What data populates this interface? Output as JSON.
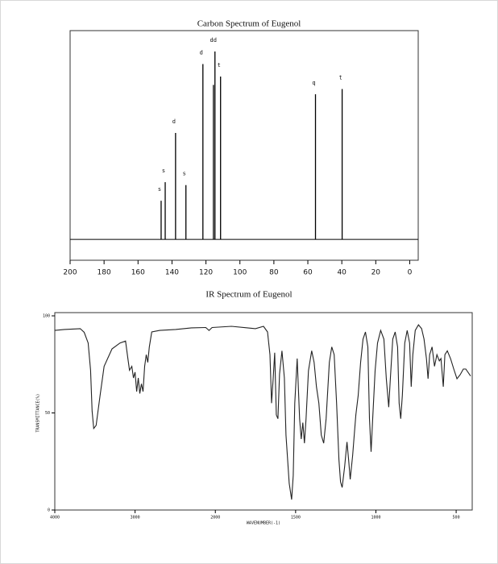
{
  "chart_data": [
    {
      "type": "stem",
      "title": "Carbon Spectrum of Eugenol",
      "x": [
        146.4,
        144.0,
        137.9,
        131.8,
        121.8,
        115.6,
        114.7,
        111.4,
        55.5,
        39.8
      ],
      "values": [
        18.5,
        27.4,
        51,
        26,
        84,
        74,
        90,
        78,
        69.5,
        72
      ],
      "peak_labels": [
        "s",
        "s",
        "d",
        "s",
        "d",
        null,
        "dd",
        "t",
        "q",
        "t"
      ],
      "xlim": [
        200,
        -5
      ],
      "ylim": [
        -10,
        100
      ],
      "xticks": [
        200,
        180,
        160,
        140,
        120,
        100,
        80,
        60,
        40,
        20,
        0
      ],
      "color": "#000000"
    },
    {
      "type": "line",
      "title": "IR Spectrum of Eugenol",
      "x_label": "WAVENUMBER(-1)",
      "y_label": "TRANSMITTANCE(%)",
      "x_break": 2000,
      "x_break_ratio": 2,
      "xlim": [
        4000,
        400
      ],
      "ylim": [
        0,
        100
      ],
      "xticks": [
        4000,
        3000,
        2000,
        1500,
        1000,
        500
      ],
      "yticks": [
        0,
        50,
        100
      ],
      "color": "#222222",
      "x": [
        4000,
        3881,
        3683,
        3634,
        3584,
        3554,
        3535,
        3515,
        3485,
        3436,
        3386,
        3287,
        3188,
        3119,
        3089,
        3069,
        3040,
        3020,
        3000,
        2980,
        2960,
        2941,
        2921,
        2901,
        2881,
        2861,
        2842,
        2822,
        2792,
        2693,
        2495,
        2297,
        2119,
        2079,
        2040,
        1900,
        1800,
        1750,
        1700,
        1675,
        1660,
        1650,
        1640,
        1630,
        1620,
        1610,
        1600,
        1585,
        1570,
        1560,
        1540,
        1525,
        1515,
        1505,
        1490,
        1475,
        1465,
        1455,
        1445,
        1435,
        1420,
        1400,
        1385,
        1370,
        1355,
        1340,
        1325,
        1310,
        1290,
        1275,
        1260,
        1245,
        1230,
        1220,
        1210,
        1195,
        1180,
        1170,
        1160,
        1145,
        1135,
        1125,
        1110,
        1095,
        1080,
        1065,
        1050,
        1040,
        1030,
        1020,
        1005,
        990,
        970,
        950,
        935,
        920,
        910,
        895,
        880,
        865,
        855,
        845,
        835,
        820,
        805,
        790,
        780,
        770,
        755,
        735,
        715,
        700,
        685,
        675,
        665,
        650,
        635,
        620,
        605,
        595,
        580,
        570,
        555,
        535,
        515,
        495,
        475,
        455,
        440,
        410
      ],
      "values": [
        92.5,
        93,
        93.4,
        91.5,
        86,
        72,
        51,
        42,
        43.6,
        59,
        74,
        83,
        86,
        87,
        78,
        72,
        74,
        68,
        71,
        61,
        68,
        60,
        65,
        61,
        74,
        80,
        76,
        84,
        91.7,
        92.5,
        93,
        93.8,
        94,
        92.5,
        94,
        94.6,
        93.8,
        93.4,
        94.6,
        91.7,
        80,
        55,
        67.6,
        81,
        49,
        47,
        70,
        82,
        68,
        38.6,
        13.7,
        5.4,
        17.8,
        55,
        78,
        47,
        36.5,
        45,
        34.4,
        47,
        71.8,
        82,
        76,
        63.5,
        55,
        38.6,
        34.4,
        47,
        76,
        84,
        80,
        55,
        26,
        14.5,
        11.6,
        22,
        35,
        26,
        15.8,
        28,
        38.6,
        49,
        59,
        76,
        88,
        91.7,
        84,
        47,
        30,
        47,
        71.8,
        86,
        92.5,
        88,
        67.6,
        53,
        67.6,
        88,
        91.7,
        84,
        55,
        47,
        59,
        86,
        92.5,
        86,
        63.5,
        80,
        92.5,
        95.4,
        93.4,
        88,
        78,
        67.6,
        80,
        84,
        74,
        80,
        76.8,
        78,
        63.5,
        80,
        82,
        78,
        72.6,
        67.6,
        69.7,
        72.6,
        72.6,
        69
      ]
    }
  ]
}
